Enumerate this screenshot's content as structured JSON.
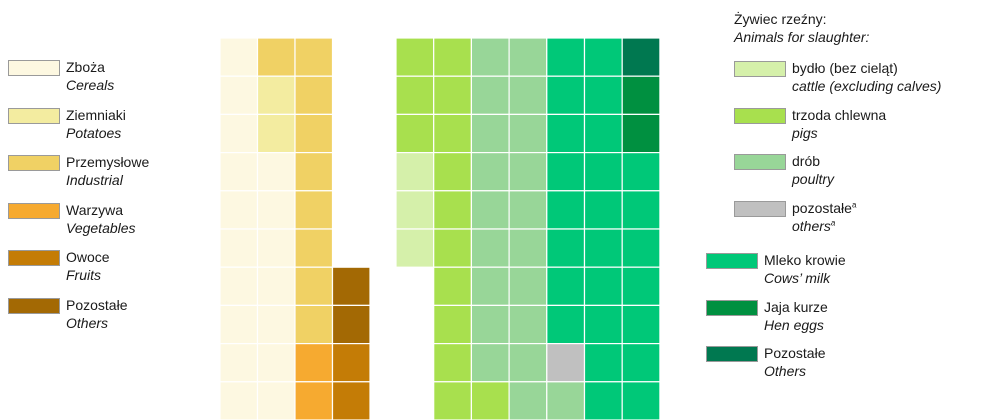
{
  "chart_data": {
    "type": "table",
    "description": "Mosaic grid of colored cells; each cell shows a category by color",
    "left_grid": {
      "legend": [
        {
          "pl": "Zboża",
          "en": "Cereals",
          "color": "#fdf8e1"
        },
        {
          "pl": "Ziemniaki",
          "en": "Potatoes",
          "color": "#f3eca0"
        },
        {
          "pl": "Przemysłowe",
          "en": "Industrial",
          "color": "#f0d164"
        },
        {
          "pl": "Warzywa",
          "en": "Vegetables",
          "color": "#f6aa30"
        },
        {
          "pl": "Owoce",
          "en": "Fruits",
          "color": "#c47c06"
        },
        {
          "pl": "Pozostałe",
          "en": "Others",
          "color": "#a36904"
        }
      ],
      "rows": [
        [
          0,
          2,
          2,
          -1
        ],
        [
          0,
          1,
          2,
          -1
        ],
        [
          0,
          1,
          2,
          -1
        ],
        [
          0,
          0,
          2,
          -1
        ],
        [
          0,
          0,
          2,
          -1
        ],
        [
          0,
          0,
          2,
          -1
        ],
        [
          0,
          0,
          2,
          5
        ],
        [
          0,
          0,
          2,
          5
        ],
        [
          0,
          0,
          3,
          4
        ],
        [
          0,
          0,
          3,
          4
        ]
      ]
    },
    "right_grid": {
      "title_pl": "Żywiec rzeźny:",
      "title_en": "Animals for slaughter:",
      "legend": [
        {
          "pl": "bydło (bez cieląt)",
          "en": "cattle (excluding calves)",
          "color": "#d5f0aa",
          "group": "animals"
        },
        {
          "pl": "trzoda chlewna",
          "en": "pigs",
          "color": "#a8e04e",
          "group": "animals"
        },
        {
          "pl": "drób",
          "en": "poultry",
          "color": "#98d698",
          "group": "animals"
        },
        {
          "pl": "pozostałe",
          "en": "others",
          "sup": "a",
          "color": "#c0c0c0",
          "group": "animals"
        },
        {
          "pl": "Mleko krowie",
          "en": "Cows’ milk",
          "color": "#00c878",
          "group": "main"
        },
        {
          "pl": "Jaja kurze",
          "en": "Hen eggs",
          "color": "#009040",
          "group": "main"
        },
        {
          "pl": "Pozostałe",
          "en": "Others",
          "color": "#007850",
          "group": "main"
        }
      ],
      "rows": [
        [
          1,
          1,
          2,
          2,
          4,
          4,
          6
        ],
        [
          1,
          1,
          2,
          2,
          4,
          4,
          5
        ],
        [
          1,
          1,
          2,
          2,
          4,
          4,
          5
        ],
        [
          0,
          1,
          2,
          2,
          4,
          4,
          4
        ],
        [
          0,
          1,
          2,
          2,
          4,
          4,
          4
        ],
        [
          0,
          1,
          2,
          2,
          4,
          4,
          4
        ],
        [
          -1,
          1,
          2,
          2,
          4,
          4,
          4
        ],
        [
          -1,
          1,
          2,
          2,
          4,
          4,
          4
        ],
        [
          -1,
          1,
          2,
          2,
          3,
          4,
          4
        ],
        [
          -1,
          1,
          1,
          2,
          2,
          4,
          4
        ]
      ]
    }
  }
}
